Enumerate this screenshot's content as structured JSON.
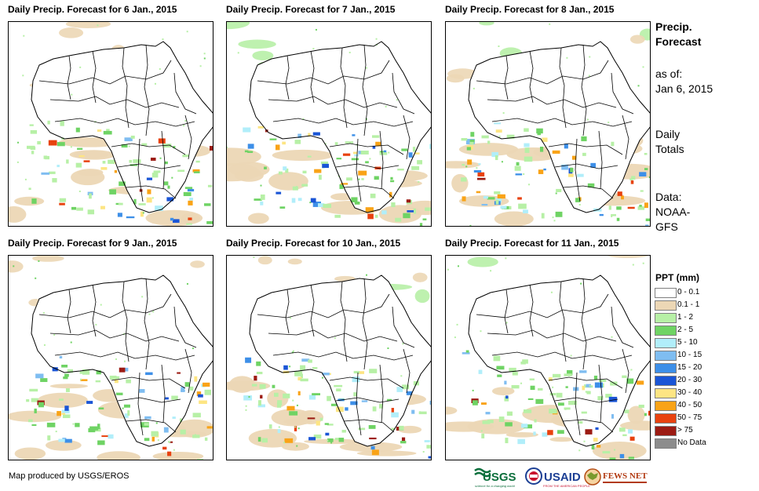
{
  "panels": [
    {
      "title": "Daily Precip. Forecast for 6 Jan., 2015"
    },
    {
      "title": "Daily Precip. Forecast for 7 Jan., 2015"
    },
    {
      "title": "Daily Precip. Forecast for 8 Jan., 2015"
    },
    {
      "title": "Daily Precip. Forecast for 9 Jan., 2015"
    },
    {
      "title": "Daily Precip. Forecast for 10 Jan., 2015"
    },
    {
      "title": "Daily Precip. Forecast for 11 Jan., 2015"
    }
  ],
  "sidebar": {
    "heading_line1": "Precip.",
    "heading_line2": "Forecast",
    "asof_line1": "as of:",
    "asof_line2": "Jan 6, 2015",
    "totals_line1": "Daily",
    "totals_line2": "Totals",
    "data_line1": "Data:",
    "data_line2": "NOAA-",
    "data_line3": "GFS"
  },
  "legend": {
    "title": "PPT (mm)",
    "items": [
      {
        "label": "0 - 0.1",
        "color": "#ffffff"
      },
      {
        "label": "0.1 - 1",
        "color": "#ecd7b5"
      },
      {
        "label": "1 - 2",
        "color": "#b7f0a6"
      },
      {
        "label": "2 - 5",
        "color": "#6fd364"
      },
      {
        "label": "5 - 10",
        "color": "#b1eefa"
      },
      {
        "label": "10 - 15",
        "color": "#7fbdf1"
      },
      {
        "label": "15 - 20",
        "color": "#3d8fe8"
      },
      {
        "label": "20 - 30",
        "color": "#1a55d6"
      },
      {
        "label": "30 - 40",
        "color": "#fde583"
      },
      {
        "label": "40 - 50",
        "color": "#f9a317"
      },
      {
        "label": "50 - 75",
        "color": "#e8420f"
      },
      {
        "label": "> 75",
        "color": "#9c1b13"
      },
      {
        "label": "No Data",
        "color": "#8c8c8c"
      }
    ]
  },
  "footer": {
    "credit": "Map produced by USGS/EROS",
    "logo_usgs": "USGS",
    "logo_usgs_tagline": "science for a changing world",
    "logo_usaid": "USAID",
    "logo_usaid_tagline": "FROM THE AMERICAN PEOPLE",
    "logo_fews": "FEWS NET"
  }
}
